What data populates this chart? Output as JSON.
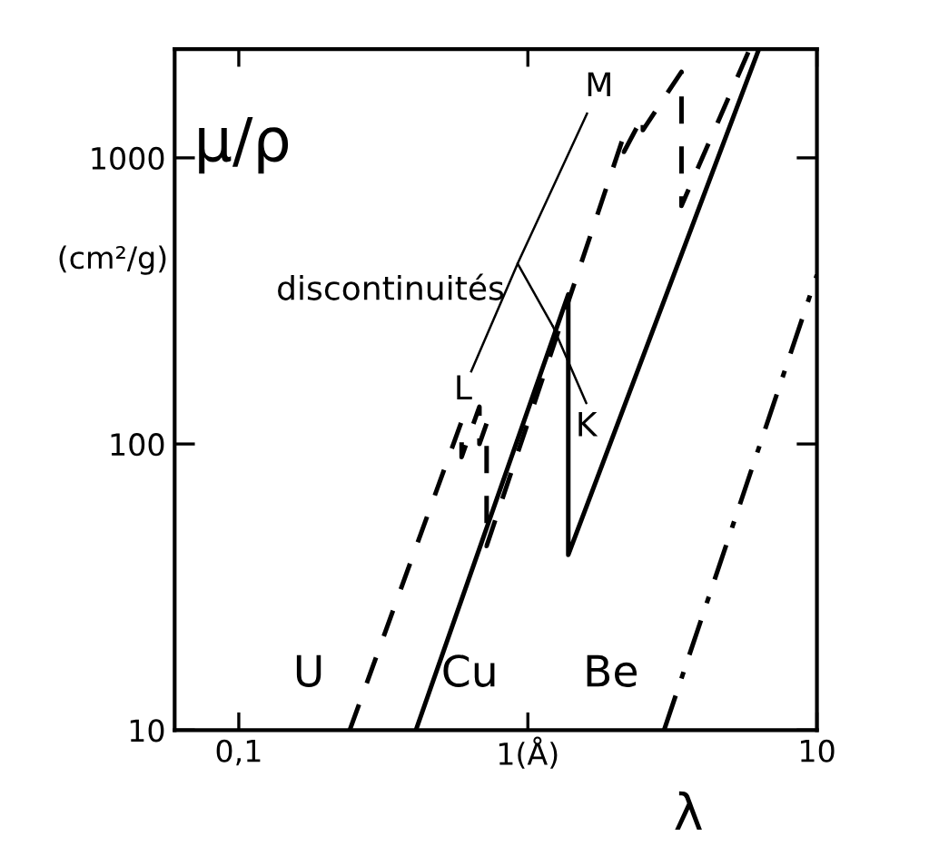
{
  "chart_data": {
    "type": "line",
    "ylabel": "μ/ρ",
    "xlabel": "λ",
    "log": "xy",
    "xlim": [
      0.06,
      10
    ],
    "ylim": [
      10,
      2400
    ],
    "xticks": [
      {
        "value": 0.1,
        "label": "0,1"
      },
      {
        "value": 1,
        "label": "1(Å)"
      },
      10
    ],
    "yticks": [
      10,
      100,
      1000
    ],
    "grid": false,
    "legend": false,
    "marker": "none",
    "series": [
      {
        "name": "U",
        "color": "#000000",
        "line_style": "dashed",
        "x": [
          0.242,
          0.59,
          0.59,
          0.68,
          0.68,
          0.72,
          0.72,
          2.15,
          2.15,
          2.5,
          2.5,
          3.4,
          3.4,
          5.85
        ],
        "values": [
          10,
          120,
          90,
          135,
          100,
          118,
          44,
          1200,
          1050,
          1400,
          1250,
          2000,
          680,
          2400
        ]
      },
      {
        "name": "Cu",
        "color": "#000000",
        "line_style": "solid",
        "x": [
          0.41,
          1.38,
          1.38,
          6.3
        ],
        "values": [
          10,
          333,
          41,
          2400
        ]
      },
      {
        "name": "Be",
        "color": "#000000",
        "line_style": "dashdot",
        "x": [
          2.96,
          10
        ],
        "values": [
          10,
          390
        ]
      }
    ],
    "annotations": [
      "(cm²/g)",
      {
        "text": "discontinuités",
        "x": 1.22,
        "y": 258
      },
      "M",
      "L",
      {
        "text": "K",
        "x": 1.22,
        "y": 258
      }
    ]
  }
}
